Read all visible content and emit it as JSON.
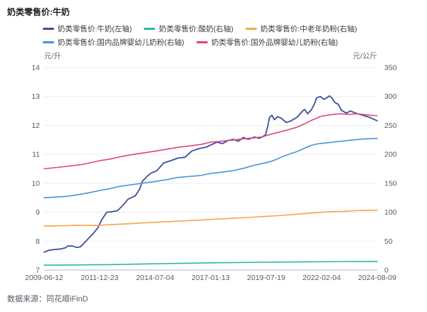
{
  "header": {
    "title": "奶类零售价:牛奶"
  },
  "axis_units": {
    "left": "元/升",
    "right": "元/公斤"
  },
  "footer": {
    "source_label": "数据来源：同花顺iFinD"
  },
  "colors": {
    "grid": "#ededf3",
    "axis_line": "#b4b8c6",
    "tick_text": "#565b66"
  },
  "chart_data": {
    "type": "line",
    "title": "奶类零售价:牛奶",
    "legend_position": "top",
    "grid": "horizontal",
    "x_axis": {
      "tick_labels": [
        "2009-06-12",
        "2011-12-23",
        "2014-07-04",
        "2017-01-13",
        "2019-07-19",
        "2022-02-04",
        "2024-08-09"
      ]
    },
    "left_axis": {
      "unit": "元/升",
      "min": 7,
      "max": 14,
      "ticks": [
        14,
        13,
        12,
        11,
        10,
        9,
        8,
        7
      ]
    },
    "right_axis": {
      "unit": "元/公斤",
      "min": 0,
      "max": 350,
      "ticks": [
        350,
        300,
        250,
        200,
        150,
        100,
        50,
        0
      ]
    },
    "series": [
      {
        "name": "奶类零售价:牛奶(左轴)",
        "axis": "left",
        "color": "#3f4ea0",
        "points": [
          [
            0.0,
            7.62
          ],
          [
            0.013,
            7.68
          ],
          [
            0.03,
            7.71
          ],
          [
            0.05,
            7.73
          ],
          [
            0.064,
            7.77
          ],
          [
            0.071,
            7.83
          ],
          [
            0.085,
            7.83
          ],
          [
            0.098,
            7.78
          ],
          [
            0.109,
            7.8
          ],
          [
            0.128,
            8.03
          ],
          [
            0.15,
            8.3
          ],
          [
            0.162,
            8.47
          ],
          [
            0.172,
            8.72
          ],
          [
            0.188,
            9.0
          ],
          [
            0.205,
            9.02
          ],
          [
            0.22,
            9.05
          ],
          [
            0.235,
            9.22
          ],
          [
            0.252,
            9.45
          ],
          [
            0.274,
            9.57
          ],
          [
            0.287,
            9.8
          ],
          [
            0.295,
            10.07
          ],
          [
            0.31,
            10.25
          ],
          [
            0.321,
            10.35
          ],
          [
            0.338,
            10.43
          ],
          [
            0.359,
            10.7
          ],
          [
            0.38,
            10.78
          ],
          [
            0.402,
            10.87
          ],
          [
            0.423,
            10.9
          ],
          [
            0.444,
            11.12
          ],
          [
            0.466,
            11.2
          ],
          [
            0.487,
            11.25
          ],
          [
            0.5,
            11.32
          ],
          [
            0.519,
            11.42
          ],
          [
            0.535,
            11.37
          ],
          [
            0.553,
            11.48
          ],
          [
            0.568,
            11.52
          ],
          [
            0.583,
            11.45
          ],
          [
            0.598,
            11.58
          ],
          [
            0.613,
            11.52
          ],
          [
            0.632,
            11.6
          ],
          [
            0.645,
            11.55
          ],
          [
            0.655,
            11.6
          ],
          [
            0.665,
            11.68
          ],
          [
            0.671,
            11.95
          ],
          [
            0.677,
            12.28
          ],
          [
            0.684,
            12.35
          ],
          [
            0.691,
            12.2
          ],
          [
            0.701,
            12.3
          ],
          [
            0.712,
            12.25
          ],
          [
            0.727,
            12.1
          ],
          [
            0.74,
            12.15
          ],
          [
            0.755,
            12.25
          ],
          [
            0.761,
            12.3
          ],
          [
            0.776,
            12.5
          ],
          [
            0.782,
            12.55
          ],
          [
            0.791,
            12.4
          ],
          [
            0.803,
            12.55
          ],
          [
            0.812,
            12.75
          ],
          [
            0.818,
            12.95
          ],
          [
            0.829,
            13.0
          ],
          [
            0.84,
            12.9
          ],
          [
            0.848,
            12.95
          ],
          [
            0.857,
            13.02
          ],
          [
            0.866,
            12.92
          ],
          [
            0.872,
            12.8
          ],
          [
            0.883,
            12.73
          ],
          [
            0.893,
            12.52
          ],
          [
            0.908,
            12.42
          ],
          [
            0.919,
            12.5
          ],
          [
            0.936,
            12.42
          ],
          [
            0.957,
            12.35
          ],
          [
            0.979,
            12.27
          ],
          [
            1.0,
            12.16
          ]
        ]
      },
      {
        "name": "奶类零售价:酸奶(右轴)",
        "axis": "right",
        "color": "#2db8a5",
        "points": [
          [
            0.0,
            8.5
          ],
          [
            0.1,
            8.8
          ],
          [
            0.2,
            9.5
          ],
          [
            0.3,
            10.5
          ],
          [
            0.4,
            11.5
          ],
          [
            0.5,
            12.5
          ],
          [
            0.6,
            13.2
          ],
          [
            0.7,
            13.8
          ],
          [
            0.8,
            14.3
          ],
          [
            0.9,
            14.7
          ],
          [
            1.0,
            15.0
          ]
        ]
      },
      {
        "name": "奶类零售价:中老年奶粉(右轴)",
        "axis": "right",
        "color": "#f6a54c",
        "points": [
          [
            0.0,
            76
          ],
          [
            0.05,
            76.5
          ],
          [
            0.1,
            77.5
          ],
          [
            0.15,
            77
          ],
          [
            0.2,
            78.5
          ],
          [
            0.25,
            80
          ],
          [
            0.3,
            81.5
          ],
          [
            0.333,
            82.5
          ],
          [
            0.4,
            84.5
          ],
          [
            0.47,
            86.5
          ],
          [
            0.5,
            87.5
          ],
          [
            0.57,
            89.5
          ],
          [
            0.63,
            91.5
          ],
          [
            0.655,
            92.5
          ],
          [
            0.7,
            94
          ],
          [
            0.75,
            96
          ],
          [
            0.8,
            98.5
          ],
          [
            0.833,
            100
          ],
          [
            0.87,
            101
          ],
          [
            0.9,
            101.5
          ],
          [
            0.93,
            102.5
          ],
          [
            0.96,
            103
          ],
          [
            1.0,
            103.5
          ]
        ]
      },
      {
        "name": "奶类零售价:国内品牌婴幼儿奶粉(右轴)",
        "axis": "right",
        "color": "#4793db",
        "points": [
          [
            0.0,
            125
          ],
          [
            0.03,
            126
          ],
          [
            0.07,
            127.5
          ],
          [
            0.1,
            130
          ],
          [
            0.13,
            133
          ],
          [
            0.167,
            137.5
          ],
          [
            0.2,
            141
          ],
          [
            0.23,
            145
          ],
          [
            0.27,
            148
          ],
          [
            0.3,
            150.5
          ],
          [
            0.333,
            153
          ],
          [
            0.37,
            156.5
          ],
          [
            0.4,
            160
          ],
          [
            0.43,
            161.5
          ],
          [
            0.47,
            163.5
          ],
          [
            0.5,
            167
          ],
          [
            0.53,
            169
          ],
          [
            0.57,
            172
          ],
          [
            0.6,
            176
          ],
          [
            0.63,
            181
          ],
          [
            0.655,
            184
          ],
          [
            0.68,
            187.5
          ],
          [
            0.7,
            192
          ],
          [
            0.72,
            197
          ],
          [
            0.74,
            201
          ],
          [
            0.76,
            205
          ],
          [
            0.78,
            210
          ],
          [
            0.8,
            215
          ],
          [
            0.82,
            218
          ],
          [
            0.833,
            219
          ],
          [
            0.86,
            220.5
          ],
          [
            0.88,
            222
          ],
          [
            0.9,
            223
          ],
          [
            0.92,
            224.5
          ],
          [
            0.94,
            225.5
          ],
          [
            0.96,
            226.5
          ],
          [
            1.0,
            227.5
          ]
        ]
      },
      {
        "name": "奶类零售价:国外品牌婴幼儿奶粉(右轴)",
        "axis": "right",
        "color": "#e2447f",
        "points": [
          [
            0.0,
            175
          ],
          [
            0.04,
            177.5
          ],
          [
            0.08,
            180
          ],
          [
            0.12,
            183
          ],
          [
            0.167,
            189
          ],
          [
            0.2,
            192
          ],
          [
            0.23,
            196
          ],
          [
            0.27,
            200
          ],
          [
            0.3,
            202.5
          ],
          [
            0.333,
            205.5
          ],
          [
            0.37,
            209
          ],
          [
            0.4,
            212
          ],
          [
            0.43,
            214
          ],
          [
            0.47,
            217
          ],
          [
            0.5,
            221
          ],
          [
            0.53,
            222.5
          ],
          [
            0.57,
            225
          ],
          [
            0.6,
            227
          ],
          [
            0.63,
            228.5
          ],
          [
            0.655,
            230
          ],
          [
            0.67,
            233
          ],
          [
            0.69,
            236
          ],
          [
            0.71,
            239
          ],
          [
            0.73,
            242
          ],
          [
            0.755,
            246
          ],
          [
            0.78,
            252
          ],
          [
            0.8,
            258
          ],
          [
            0.82,
            263
          ],
          [
            0.833,
            266
          ],
          [
            0.86,
            268.5
          ],
          [
            0.89,
            270
          ],
          [
            0.915,
            269
          ],
          [
            0.94,
            270
          ],
          [
            0.965,
            268.5
          ],
          [
            1.0,
            266.5
          ]
        ]
      }
    ],
    "legend_rows": [
      [
        0,
        1,
        2
      ],
      [
        3,
        4
      ]
    ]
  }
}
